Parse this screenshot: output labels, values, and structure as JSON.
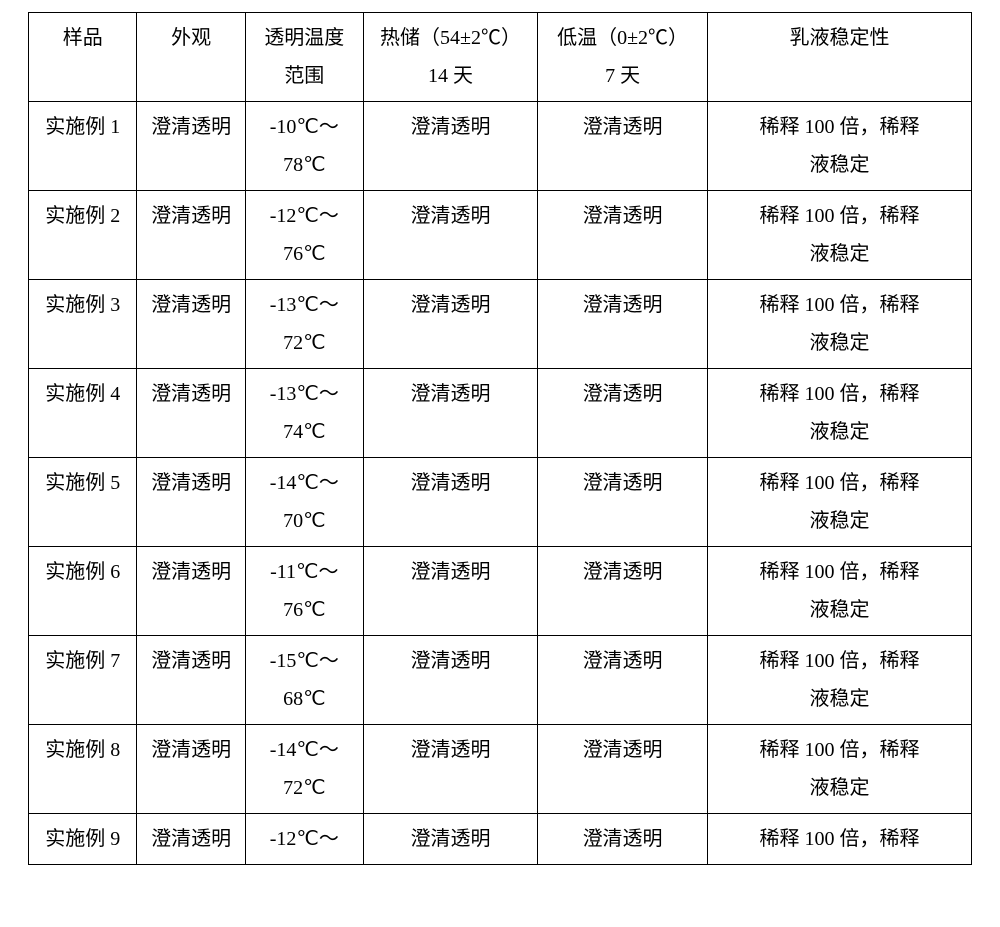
{
  "table": {
    "type": "table",
    "background_color": "#ffffff",
    "border_color": "#000000",
    "text_color": "#000000",
    "font_size_pt": 15,
    "columns": [
      {
        "label": "样品",
        "width_pct": 11.5
      },
      {
        "label": "外观",
        "width_pct": 11.5
      },
      {
        "label_line1": "透明温度",
        "label_line2": "范围",
        "width_pct": 12.5
      },
      {
        "label_line1": "热储（54±2℃）",
        "label_line2": "14 天",
        "width_pct": 18.5
      },
      {
        "label_line1": "低温（0±2℃）",
        "label_line2": "7 天",
        "width_pct": 18
      },
      {
        "label": "乳液稳定性",
        "width_pct": 28
      }
    ],
    "rows": [
      {
        "sample": "实施例 1",
        "appearance": "澄清透明",
        "range_line1": "-10℃～",
        "range_line2": "78℃",
        "hot": "澄清透明",
        "cold": "澄清透明",
        "emulsion_line1": "稀释 100 倍，稀释",
        "emulsion_line2": "液稳定"
      },
      {
        "sample": "实施例 2",
        "appearance": "澄清透明",
        "range_line1": "-12℃～",
        "range_line2": "76℃",
        "hot": "澄清透明",
        "cold": "澄清透明",
        "emulsion_line1": "稀释 100 倍，稀释",
        "emulsion_line2": "液稳定"
      },
      {
        "sample": "实施例 3",
        "appearance": "澄清透明",
        "range_line1": "-13℃～",
        "range_line2": "72℃",
        "hot": "澄清透明",
        "cold": "澄清透明",
        "emulsion_line1": "稀释 100 倍，稀释",
        "emulsion_line2": "液稳定"
      },
      {
        "sample": "实施例 4",
        "appearance": "澄清透明",
        "range_line1": "-13℃～",
        "range_line2": "74℃",
        "hot": "澄清透明",
        "cold": "澄清透明",
        "emulsion_line1": "稀释 100 倍，稀释",
        "emulsion_line2": "液稳定"
      },
      {
        "sample": "实施例 5",
        "appearance": "澄清透明",
        "range_line1": "-14℃～",
        "range_line2": "70℃",
        "hot": "澄清透明",
        "cold": "澄清透明",
        "emulsion_line1": "稀释 100 倍，稀释",
        "emulsion_line2": "液稳定"
      },
      {
        "sample": "实施例 6",
        "appearance": "澄清透明",
        "range_line1": "-11℃～",
        "range_line2": "76℃",
        "hot": "澄清透明",
        "cold": "澄清透明",
        "emulsion_line1": "稀释 100 倍，稀释",
        "emulsion_line2": "液稳定"
      },
      {
        "sample": "实施例 7",
        "appearance": "澄清透明",
        "range_line1": "-15℃～",
        "range_line2": "68℃",
        "hot": "澄清透明",
        "cold": "澄清透明",
        "emulsion_line1": "稀释 100 倍，稀释",
        "emulsion_line2": "液稳定"
      },
      {
        "sample": "实施例 8",
        "appearance": "澄清透明",
        "range_line1": "-14℃～",
        "range_line2": "72℃",
        "hot": "澄清透明",
        "cold": "澄清透明",
        "emulsion_line1": "稀释 100 倍，稀释",
        "emulsion_line2": "液稳定"
      },
      {
        "sample": "实施例 9",
        "appearance": "澄清透明",
        "range_line1": "-12℃～",
        "range_line2": "",
        "hot": "澄清透明",
        "cold": "澄清透明",
        "emulsion_line1": "稀释 100 倍，稀释",
        "emulsion_line2": ""
      }
    ]
  }
}
